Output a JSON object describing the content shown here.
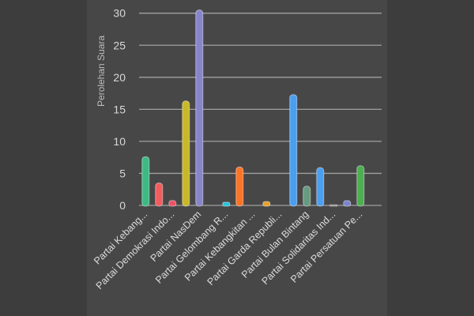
{
  "chart_data": {
    "type": "bar",
    "title": "",
    "xlabel": "",
    "ylabel": "Perolehan Suara",
    "ylim": [
      0,
      30
    ],
    "yticks": [
      0,
      5,
      10,
      15,
      20,
      25,
      30
    ],
    "grid": true,
    "categories": [
      "Partai Kebang...",
      "",
      "Partai Demokrasi Indo...",
      "",
      "Partai NasDem",
      "",
      "Partai Gelombang R...",
      "",
      "Partai Kebangkitan ...",
      "",
      "Partai Garda Republi...",
      "",
      "Partai Bulan Bintang",
      "",
      "Partai Solidaritas Ind...",
      "",
      "Partai Persatuan Pe..."
    ],
    "values": [
      7.6,
      3.5,
      0.75,
      16.3,
      30.5,
      0,
      0.5,
      6.0,
      0,
      0.6,
      0,
      17.3,
      3.0,
      5.9,
      0.1,
      0.75,
      6.2
    ],
    "colors": [
      "#3dba84",
      "#f25c5c",
      "#ec5264",
      "#c9b826",
      "#8886c9",
      "#888888",
      "#27c4da",
      "#ff7326",
      "#888888",
      "#e9a02e",
      "#888888",
      "#4b9ff0",
      "#679a80",
      "#4b9ff0",
      "#8a8a8a",
      "#7b85cb",
      "#4caf50"
    ]
  }
}
